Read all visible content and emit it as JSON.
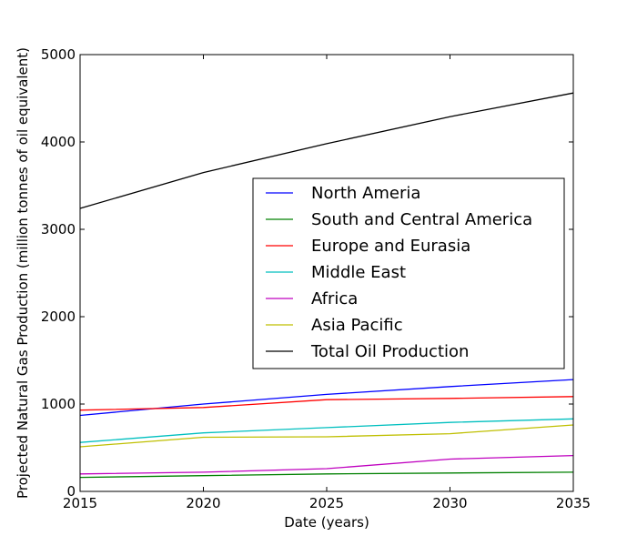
{
  "chart_data": {
    "type": "line",
    "title": "",
    "xlabel": "Date (years)",
    "ylabel": "Projected Natural Gas Production (million tonnes of oil equivalent)",
    "xlim": [
      2015,
      2035
    ],
    "ylim": [
      0,
      5000
    ],
    "xticks": [
      2015,
      2020,
      2025,
      2030,
      2035
    ],
    "yticks": [
      0,
      1000,
      2000,
      3000,
      4000,
      5000
    ],
    "grid": false,
    "legend_position": "center-right",
    "x": [
      2015,
      2020,
      2025,
      2030,
      2035
    ],
    "series": [
      {
        "name": "North Ameria",
        "color": "#0000ff",
        "values": [
          870,
          1000,
          1110,
          1200,
          1280
        ]
      },
      {
        "name": "South and Central America",
        "color": "#008000",
        "values": [
          160,
          180,
          200,
          210,
          220
        ]
      },
      {
        "name": "Europe and Eurasia",
        "color": "#ff0000",
        "values": [
          930,
          960,
          1050,
          1065,
          1085
        ]
      },
      {
        "name": "Middle East",
        "color": "#00bfbf",
        "values": [
          560,
          670,
          730,
          790,
          830
        ]
      },
      {
        "name": "Africa",
        "color": "#bf00bf",
        "values": [
          200,
          220,
          260,
          370,
          410
        ]
      },
      {
        "name": "Asia Pacific",
        "color": "#bfbf00",
        "values": [
          510,
          620,
          625,
          660,
          760
        ]
      },
      {
        "name": "Total Oil Production",
        "color": "#000000",
        "values": [
          3240,
          3650,
          3980,
          4290,
          4560
        ]
      }
    ]
  }
}
